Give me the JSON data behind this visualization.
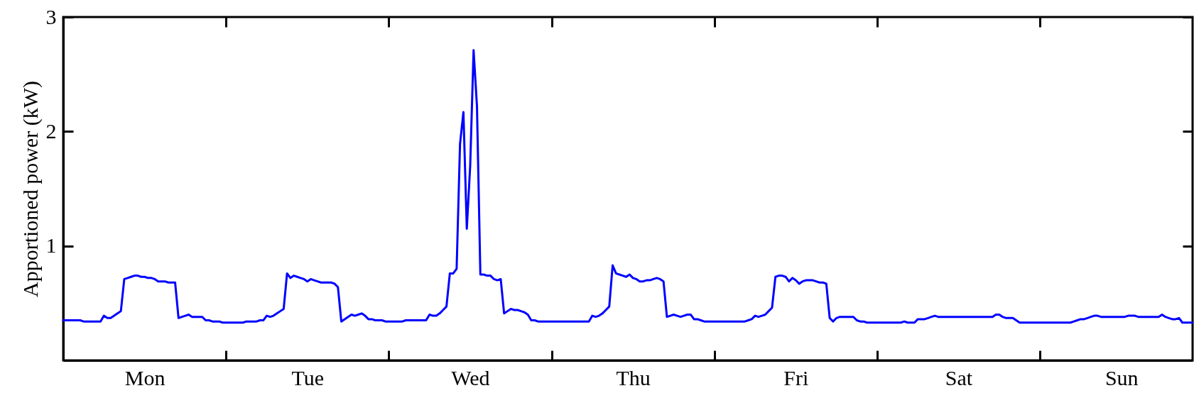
{
  "chart_data": {
    "type": "line",
    "ylabel": "Apportioned power (kW)",
    "categories": [
      null,
      null,
      null,
      null,
      null,
      null,
      null,
      null,
      null,
      null,
      null,
      null,
      null,
      null,
      null,
      null,
      null,
      null,
      null,
      null,
      null,
      null,
      null,
      null,
      "Mon",
      null,
      null,
      null,
      null,
      null,
      null,
      null,
      null,
      null,
      null,
      null,
      null,
      null,
      null,
      null,
      null,
      null,
      null,
      null,
      null,
      null,
      null,
      null,
      null,
      null,
      null,
      null,
      null,
      null,
      null,
      null,
      null,
      null,
      null,
      null,
      null,
      null,
      null,
      null,
      null,
      null,
      null,
      null,
      null,
      null,
      null,
      null,
      "Tue",
      null,
      null,
      null,
      null,
      null,
      null,
      null,
      null,
      null,
      null,
      null,
      null,
      null,
      null,
      null,
      null,
      null,
      null,
      null,
      null,
      null,
      null,
      null,
      null,
      null,
      null,
      null,
      null,
      null,
      null,
      null,
      null,
      null,
      null,
      null,
      null,
      null,
      null,
      null,
      null,
      null,
      null,
      null,
      null,
      null,
      null,
      null,
      "Wed",
      null,
      null,
      null,
      null,
      null,
      null,
      null,
      null,
      null,
      null,
      null,
      null,
      null,
      null,
      null,
      null,
      null,
      null,
      null,
      null,
      null,
      null,
      null,
      null,
      null,
      null,
      null,
      null,
      null,
      null,
      null,
      null,
      null,
      null,
      null,
      null,
      null,
      null,
      null,
      null,
      null,
      null,
      null,
      null,
      null,
      null,
      null,
      "Thu",
      null,
      null,
      null,
      null,
      null,
      null,
      null,
      null,
      null,
      null,
      null,
      null,
      null,
      null,
      null,
      null,
      null,
      null,
      null,
      null,
      null,
      null,
      null,
      null,
      null,
      null,
      null,
      null,
      null,
      null,
      null,
      null,
      null,
      null,
      null,
      null,
      null,
      null,
      null,
      null,
      null,
      null,
      null,
      null,
      null,
      null,
      null,
      "Fri",
      null,
      null,
      null,
      null,
      null,
      null,
      null,
      null,
      null,
      null,
      null,
      null,
      null,
      null,
      null,
      null,
      null,
      null,
      null,
      null,
      null,
      null,
      null,
      null,
      null,
      null,
      null,
      null,
      null,
      null,
      null,
      null,
      null,
      null,
      null,
      null,
      null,
      null,
      null,
      null,
      null,
      null,
      null,
      null,
      null,
      null,
      null,
      "Sat",
      null,
      null,
      null,
      null,
      null,
      null,
      null,
      null,
      null,
      null,
      null,
      null,
      null,
      null,
      null,
      null,
      null,
      null,
      null,
      null,
      null,
      null,
      null,
      null,
      null,
      null,
      null,
      null,
      null,
      null,
      null,
      null,
      null,
      null,
      null,
      null,
      null,
      null,
      null,
      null,
      null,
      null,
      null,
      null,
      null,
      null,
      null,
      "Sun",
      null,
      null,
      null,
      null,
      null,
      null,
      null,
      null,
      null,
      null,
      null,
      null,
      null,
      null,
      null,
      null,
      null,
      null,
      null,
      null,
      null
    ],
    "series": [
      {
        "color": "#0000ff",
        "values": [
          0.35,
          0.35,
          0.35,
          0.35,
          0.35,
          0.35,
          0.34,
          0.34,
          0.34,
          0.34,
          0.34,
          0.34,
          0.39,
          0.37,
          0.37,
          0.39,
          0.41,
          0.43,
          0.71,
          0.72,
          0.73,
          0.74,
          0.74,
          0.73,
          0.73,
          0.72,
          0.72,
          0.71,
          0.69,
          0.69,
          0.69,
          0.68,
          0.68,
          0.68,
          0.37,
          0.38,
          0.39,
          0.4,
          0.38,
          0.38,
          0.38,
          0.38,
          0.35,
          0.35,
          0.34,
          0.34,
          0.34,
          0.33,
          0.33,
          0.33,
          0.33,
          0.33,
          0.33,
          0.33,
          0.34,
          0.34,
          0.34,
          0.34,
          0.35,
          0.35,
          0.39,
          0.38,
          0.39,
          0.41,
          0.43,
          0.45,
          0.76,
          0.72,
          0.74,
          0.73,
          0.72,
          0.71,
          0.69,
          0.71,
          0.7,
          0.69,
          0.68,
          0.68,
          0.68,
          0.68,
          0.67,
          0.64,
          0.34,
          0.36,
          0.38,
          0.4,
          0.39,
          0.4,
          0.41,
          0.39,
          0.36,
          0.36,
          0.35,
          0.35,
          0.35,
          0.34,
          0.34,
          0.34,
          0.34,
          0.34,
          0.34,
          0.35,
          0.35,
          0.35,
          0.35,
          0.35,
          0.35,
          0.35,
          0.4,
          0.39,
          0.39,
          0.41,
          0.44,
          0.47,
          0.76,
          0.76,
          0.8,
          1.89,
          2.17,
          1.15,
          1.7,
          2.71,
          2.22,
          0.75,
          0.75,
          0.74,
          0.74,
          0.71,
          0.7,
          0.71,
          0.41,
          0.43,
          0.45,
          0.44,
          0.44,
          0.43,
          0.42,
          0.4,
          0.35,
          0.35,
          0.34,
          0.34,
          0.34,
          0.34,
          0.34,
          0.34,
          0.34,
          0.34,
          0.34,
          0.34,
          0.34,
          0.34,
          0.34,
          0.34,
          0.34,
          0.34,
          0.39,
          0.38,
          0.39,
          0.41,
          0.44,
          0.47,
          0.83,
          0.76,
          0.75,
          0.74,
          0.73,
          0.75,
          0.72,
          0.71,
          0.69,
          0.69,
          0.7,
          0.7,
          0.71,
          0.72,
          0.71,
          0.69,
          0.38,
          0.39,
          0.4,
          0.39,
          0.38,
          0.39,
          0.4,
          0.4,
          0.36,
          0.36,
          0.35,
          0.34,
          0.34,
          0.34,
          0.34,
          0.34,
          0.34,
          0.34,
          0.34,
          0.34,
          0.34,
          0.34,
          0.34,
          0.34,
          0.35,
          0.36,
          0.39,
          0.38,
          0.39,
          0.4,
          0.43,
          0.46,
          0.73,
          0.74,
          0.74,
          0.73,
          0.69,
          0.72,
          0.7,
          0.67,
          0.69,
          0.7,
          0.7,
          0.7,
          0.69,
          0.68,
          0.68,
          0.67,
          0.37,
          0.34,
          0.37,
          0.38,
          0.38,
          0.38,
          0.38,
          0.38,
          0.35,
          0.34,
          0.34,
          0.33,
          0.33,
          0.33,
          0.33,
          0.33,
          0.33,
          0.33,
          0.33,
          0.33,
          0.33,
          0.33,
          0.34,
          0.33,
          0.33,
          0.33,
          0.36,
          0.36,
          0.36,
          0.37,
          0.38,
          0.39,
          0.38,
          0.38,
          0.38,
          0.38,
          0.38,
          0.38,
          0.38,
          0.38,
          0.38,
          0.38,
          0.38,
          0.38,
          0.38,
          0.38,
          0.38,
          0.38,
          0.38,
          0.4,
          0.4,
          0.38,
          0.37,
          0.37,
          0.37,
          0.35,
          0.33,
          0.33,
          0.33,
          0.33,
          0.33,
          0.33,
          0.33,
          0.33,
          0.33,
          0.33,
          0.33,
          0.33,
          0.33,
          0.33,
          0.33,
          0.33,
          0.34,
          0.35,
          0.36,
          0.36,
          0.37,
          0.38,
          0.39,
          0.39,
          0.38,
          0.38,
          0.38,
          0.38,
          0.38,
          0.38,
          0.38,
          0.38,
          0.39,
          0.39,
          0.39,
          0.38,
          0.38,
          0.38,
          0.38,
          0.38,
          0.38,
          0.38,
          0.4,
          0.38,
          0.37,
          0.36,
          0.36,
          0.37,
          0.33,
          0.33,
          0.33,
          0.33
        ]
      }
    ],
    "ylim": [
      0,
      3
    ],
    "yticks": [
      1,
      2,
      3
    ]
  }
}
